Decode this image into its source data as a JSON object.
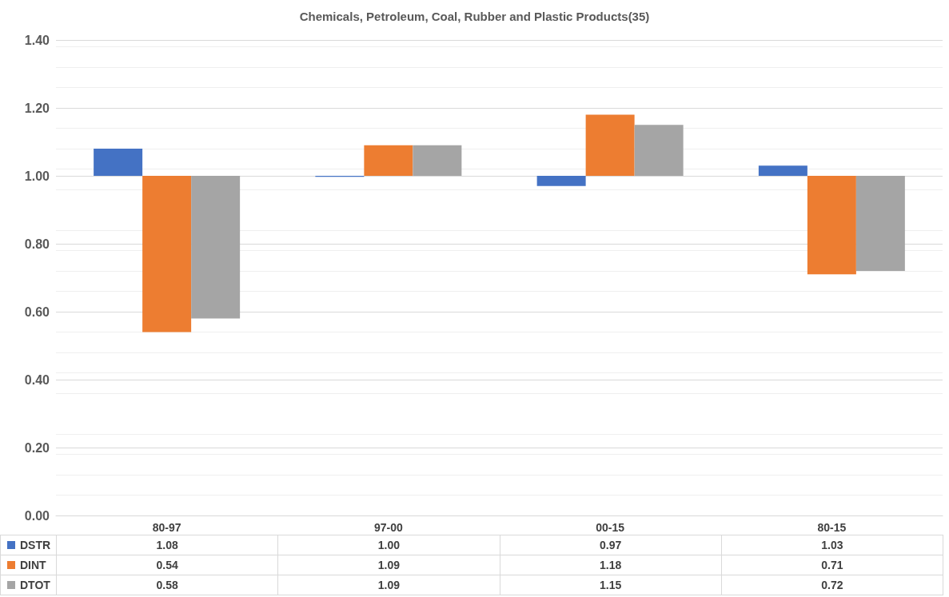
{
  "chart_data": {
    "type": "bar",
    "title": "Chemicals, Petroleum, Coal, Rubber and Plastic Products(35)",
    "categories": [
      "80-97",
      "97-00",
      "00-15",
      "80-15"
    ],
    "series": [
      {
        "name": "DSTR",
        "color": "#4472c4",
        "base": [
          1,
          1,
          1,
          1
        ],
        "values": [
          0.08,
          -0.003,
          -0.03,
          0.03
        ],
        "value_labels": [
          "1.08",
          "1.00",
          "0.97",
          "1.03"
        ]
      },
      {
        "name": "DINT",
        "color": "#ed7d31",
        "base": [
          1,
          1,
          1,
          1
        ],
        "values": [
          -0.46,
          0.09,
          0.18,
          -0.29
        ],
        "value_labels": [
          "0.54",
          "1.09",
          "1.18",
          "0.71"
        ]
      },
      {
        "name": "DTOT",
        "color": "#a5a5a5",
        "base": [
          1,
          1,
          1,
          1
        ],
        "values": [
          -0.42,
          0.09,
          0.15,
          -0.28
        ],
        "value_labels": [
          "0.58",
          "1.09",
          "1.15",
          "0.72"
        ]
      }
    ],
    "ylim": [
      0,
      1.4
    ],
    "yticks": [
      {
        "value": 0,
        "label": "0.00"
      },
      {
        "value": 0.2,
        "label": "0.20"
      },
      {
        "value": 0.4,
        "label": "0.40"
      },
      {
        "value": 0.6,
        "label": "0.60"
      },
      {
        "value": 0.8,
        "label": "0.80"
      },
      {
        "value": 1,
        "label": "1.00"
      },
      {
        "value": 1.2,
        "label": "1.20"
      },
      {
        "value": 1.4,
        "label": "1.40"
      }
    ],
    "grid": "y",
    "legend": "bottom"
  }
}
